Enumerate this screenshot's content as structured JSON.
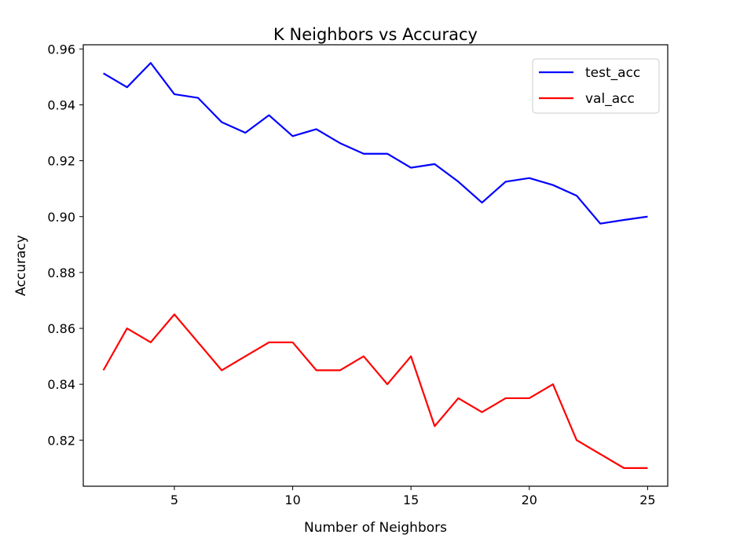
{
  "chart_data": {
    "type": "line",
    "title": "K Neighbors vs Accuracy",
    "xlabel": "Number of Neighbors",
    "ylabel": "Accuracy",
    "xlim": [
      1.15,
      25.85
    ],
    "ylim": [
      0.8035,
      0.9615
    ],
    "xticks": [
      5,
      10,
      15,
      20,
      25
    ],
    "yticks": [
      0.82,
      0.84,
      0.86,
      0.88,
      0.9,
      0.92,
      0.94,
      0.96
    ],
    "ytick_labels": [
      "0.82",
      "0.84",
      "0.86",
      "0.88",
      "0.90",
      "0.92",
      "0.94",
      "0.96"
    ],
    "grid": false,
    "legend_position": "top-right",
    "x": [
      2,
      3,
      4,
      5,
      6,
      7,
      8,
      9,
      10,
      11,
      12,
      13,
      14,
      15,
      16,
      17,
      18,
      19,
      20,
      21,
      22,
      23,
      24,
      25
    ],
    "series": [
      {
        "name": "test_acc",
        "color": "#0000ff",
        "values": [
          0.9513,
          0.9463,
          0.955,
          0.9438,
          0.9425,
          0.9338,
          0.93,
          0.9363,
          0.9288,
          0.9313,
          0.9263,
          0.9225,
          0.9225,
          0.9175,
          0.9188,
          0.9125,
          0.905,
          0.9125,
          0.9138,
          0.9113,
          0.9075,
          0.8975,
          0.8988,
          0.9
        ]
      },
      {
        "name": "val_acc",
        "color": "#ff0000",
        "values": [
          0.845,
          0.86,
          0.855,
          0.865,
          0.855,
          0.845,
          0.85,
          0.855,
          0.855,
          0.845,
          0.845,
          0.85,
          0.84,
          0.85,
          0.825,
          0.835,
          0.83,
          0.835,
          0.835,
          0.84,
          0.82,
          0.815,
          0.81,
          0.81
        ]
      }
    ]
  }
}
